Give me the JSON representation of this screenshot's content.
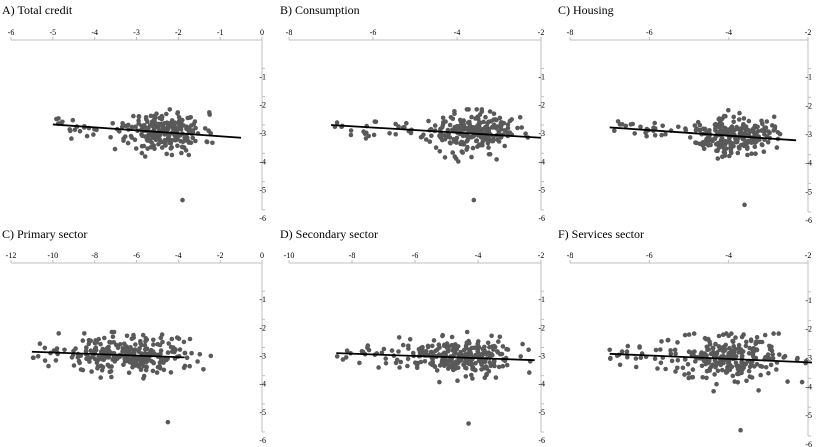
{
  "figure": {
    "colors": {
      "axis": "#BFBFBF",
      "point": "#595959",
      "trend": "#000000",
      "background": "#FFFFFF"
    }
  },
  "chart_data": [
    {
      "type": "scatter",
      "title": "A) Total credit",
      "xlabel": "",
      "ylabel": "",
      "xlim": [
        -6,
        0
      ],
      "ylim": [
        -6,
        0
      ],
      "xticks": [
        -6,
        -5,
        -4,
        -3,
        -2,
        -1,
        0
      ],
      "yticks": [
        -1,
        -2,
        -3,
        -4,
        -5,
        -6
      ],
      "trendline": {
        "x": [
          -5.0,
          -0.5
        ],
        "y": [
          -2.98,
          -3.45
        ]
      },
      "cluster": {
        "center_x": -2.3,
        "center_y": -3.25,
        "spread_x": 0.45,
        "spread_y": 0.35
      },
      "outlier": {
        "x": -1.9,
        "y": -5.65
      },
      "n_points": 260,
      "seed": 11
    },
    {
      "type": "scatter",
      "title": "B) Consumption",
      "xlabel": "",
      "ylabel": "",
      "xlim": [
        -8,
        -2
      ],
      "ylim": [
        -6,
        0
      ],
      "xticks": [
        -8,
        -6,
        -4,
        -2
      ],
      "yticks": [
        -1,
        -2,
        -3,
        -4,
        -5,
        -6
      ],
      "trendline": {
        "x": [
          -7.0,
          -2.0
        ],
        "y": [
          -3.0,
          -3.45
        ]
      },
      "cluster": {
        "center_x": -3.7,
        "center_y": -3.25,
        "spread_x": 0.55,
        "spread_y": 0.35
      },
      "outlier": {
        "x": -3.6,
        "y": -5.65
      },
      "n_points": 260,
      "seed": 23
    },
    {
      "type": "scatter",
      "title": "C) Housing",
      "xlabel": "",
      "ylabel": "",
      "xlim": [
        -8,
        -2
      ],
      "ylim": [
        -6,
        0
      ],
      "xticks": [
        -8,
        -6,
        -4,
        -2
      ],
      "yticks": [
        -1,
        -2,
        -3,
        -4,
        -5,
        -6
      ],
      "trendline": {
        "x": [
          -7.0,
          -2.3
        ],
        "y": [
          -3.05,
          -3.5
        ]
      },
      "cluster": {
        "center_x": -3.9,
        "center_y": -3.3,
        "spread_x": 0.5,
        "spread_y": 0.35
      },
      "outlier": {
        "x": -3.6,
        "y": -5.75
      },
      "n_points": 260,
      "seed": 37
    },
    {
      "type": "scatter",
      "title": "C) Primary sector",
      "xlabel": "",
      "ylabel": "",
      "xlim": [
        -12,
        0
      ],
      "ylim": [
        -6,
        0
      ],
      "xticks": [
        -12,
        -10,
        -8,
        -6,
        -4,
        -2,
        0
      ],
      "yticks": [
        -1,
        -2,
        -3,
        -4,
        -5,
        -6
      ],
      "trendline": {
        "x": [
          -11.0,
          -3.7
        ],
        "y": [
          -3.15,
          -3.35
        ]
      },
      "cluster": {
        "center_x": -6.2,
        "center_y": -3.25,
        "spread_x": 1.4,
        "spread_y": 0.35
      },
      "outlier": {
        "x": -4.5,
        "y": -5.65
      },
      "n_points": 280,
      "seed": 41
    },
    {
      "type": "scatter",
      "title": "D) Secondary sector",
      "xlabel": "",
      "ylabel": "",
      "xlim": [
        -10,
        -2
      ],
      "ylim": [
        -6,
        0
      ],
      "xticks": [
        -10,
        -8,
        -6,
        -4,
        -2
      ],
      "yticks": [
        -1,
        -2,
        -3,
        -4,
        -5,
        -6
      ],
      "trendline": {
        "x": [
          -8.5,
          -2.2
        ],
        "y": [
          -3.2,
          -3.45
        ]
      },
      "cluster": {
        "center_x": -4.6,
        "center_y": -3.3,
        "spread_x": 0.9,
        "spread_y": 0.35
      },
      "outlier": {
        "x": -4.3,
        "y": -5.7
      },
      "n_points": 280,
      "seed": 53
    },
    {
      "type": "scatter",
      "title": "F) Services sector",
      "xlabel": "",
      "ylabel": "",
      "xlim": [
        -8,
        -2
      ],
      "ylim": [
        -6,
        0
      ],
      "xticks": [
        -8,
        -6,
        -4,
        -2
      ],
      "yticks": [
        -1,
        -2,
        -3,
        -4,
        -5,
        -6
      ],
      "trendline": {
        "x": [
          -7.0,
          -1.9
        ],
        "y": [
          -3.15,
          -3.45
        ]
      },
      "cluster": {
        "center_x": -4.0,
        "center_y": -3.3,
        "spread_x": 0.75,
        "spread_y": 0.35
      },
      "outlier": {
        "x": -3.7,
        "y": -5.8
      },
      "n_points": 270,
      "seed": 67
    }
  ]
}
